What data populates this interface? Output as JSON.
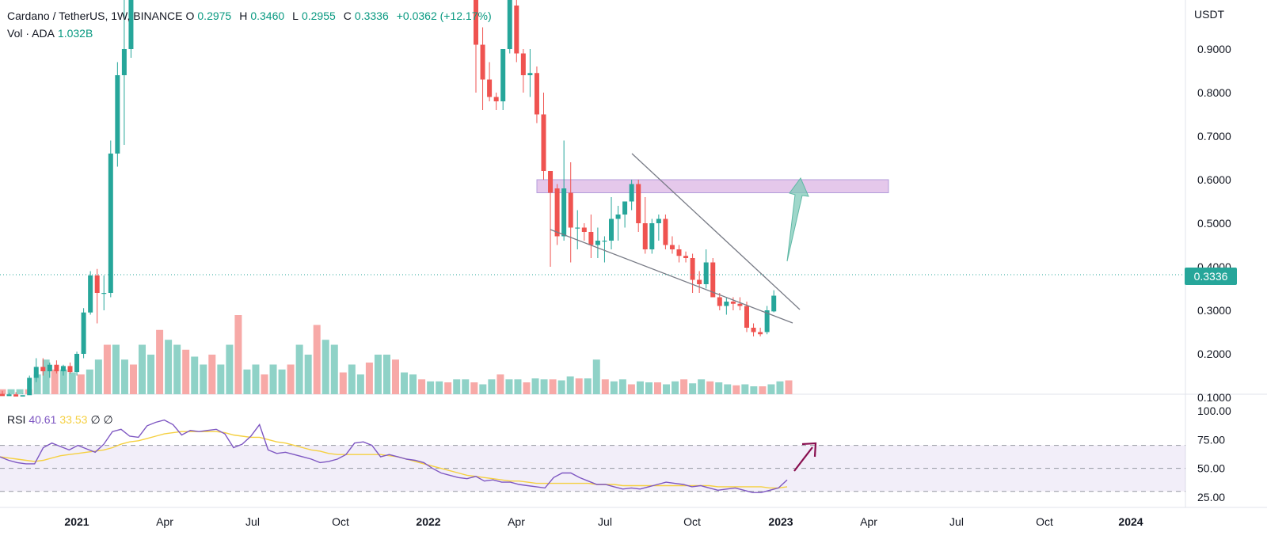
{
  "symbol": {
    "name": "Cardano / TetherUS, 1W, BINANCE",
    "o_label": "O",
    "o": "0.2975",
    "h_label": "H",
    "h": "0.3460",
    "l_label": "L",
    "l": "0.2955",
    "c_label": "C",
    "c": "0.3336",
    "change": "+0.0362 (+12.17%)"
  },
  "volume": {
    "label": "Vol · ADA",
    "value": "1.032B"
  },
  "rsi": {
    "label": "RSI",
    "value": "40.61",
    "ma": "33.53",
    "extra": "∅ ∅"
  },
  "price_axis": {
    "unit": "USDT",
    "last_price": "0.3336"
  },
  "colors": {
    "up": "#26a69a",
    "down": "#ef5350",
    "vol_up": "#8fd2c7",
    "vol_down": "#f7a9a7",
    "zone": "#e1bee7",
    "rsi": "#7e57c2",
    "rsi_ma": "#f5d041",
    "arrow_up": "#7fc9b8",
    "arrow_rsi": "#880e4f"
  },
  "chart_data": {
    "type": "candlestick",
    "title": "Cardano / TetherUS, 1W, BINANCE",
    "price_axis": {
      "ticks": [
        "0.9000",
        "0.8000",
        "0.7000",
        "0.6000",
        "0.5000",
        "0.4000",
        "0.3000",
        "0.2000",
        "0.1000"
      ],
      "range": [
        0.06,
        0.94
      ]
    },
    "rsi_axis": {
      "ticks": [
        "100.00",
        "75.00",
        "50.00",
        "25.00"
      ],
      "range": [
        20,
        100
      ],
      "bands": [
        30,
        50,
        70
      ]
    },
    "time_axis": [
      "2021",
      "Apr",
      "Jul",
      "Oct",
      "2022",
      "Apr",
      "Jul",
      "Oct",
      "2023",
      "Apr",
      "Jul",
      "Oct",
      "2024"
    ],
    "candles": [
      [
        0.108,
        0.115,
        0.098,
        0.103
      ],
      [
        0.103,
        0.11,
        0.098,
        0.107
      ],
      [
        0.107,
        0.112,
        0.1,
        0.102
      ],
      [
        0.102,
        0.108,
        0.097,
        0.105
      ],
      [
        0.105,
        0.15,
        0.1,
        0.145
      ],
      [
        0.145,
        0.19,
        0.135,
        0.17
      ],
      [
        0.17,
        0.19,
        0.15,
        0.16
      ],
      [
        0.16,
        0.18,
        0.145,
        0.175
      ],
      [
        0.175,
        0.185,
        0.155,
        0.16
      ],
      [
        0.16,
        0.175,
        0.15,
        0.172
      ],
      [
        0.172,
        0.18,
        0.155,
        0.158
      ],
      [
        0.158,
        0.205,
        0.15,
        0.2
      ],
      [
        0.2,
        0.305,
        0.19,
        0.295
      ],
      [
        0.295,
        0.39,
        0.29,
        0.38
      ],
      [
        0.38,
        0.395,
        0.27,
        0.34
      ],
      [
        0.34,
        0.38,
        0.3,
        0.34
      ],
      [
        0.34,
        0.69,
        0.33,
        0.66
      ],
      [
        0.66,
        0.87,
        0.63,
        0.84
      ],
      [
        0.84,
        1.2,
        0.68,
        0.9
      ],
      [
        0.9,
        1.2,
        0.88,
        1.15
      ]
    ],
    "candles_2": [
      [
        1.05,
        1.1,
        0.8,
        0.91
      ],
      [
        0.91,
        0.95,
        0.76,
        0.83
      ],
      [
        0.83,
        0.87,
        0.78,
        0.79
      ],
      [
        0.79,
        0.8,
        0.76,
        0.78
      ],
      [
        0.78,
        0.9,
        0.76,
        0.9
      ],
      [
        0.9,
        1.15,
        0.89,
        1.05
      ],
      [
        1.0,
        1.08,
        0.87,
        0.89
      ],
      [
        0.89,
        0.9,
        0.8,
        0.84
      ],
      [
        0.84,
        0.9,
        0.79,
        0.845
      ],
      [
        0.845,
        0.86,
        0.73,
        0.75
      ],
      [
        0.75,
        0.8,
        0.6,
        0.62
      ],
      [
        0.62,
        0.62,
        0.4,
        0.57
      ],
      [
        0.58,
        0.59,
        0.45,
        0.47
      ],
      [
        0.47,
        0.69,
        0.46,
        0.58
      ],
      [
        0.57,
        0.64,
        0.41,
        0.49
      ],
      [
        0.49,
        0.53,
        0.44,
        0.49
      ],
      [
        0.49,
        0.5,
        0.46,
        0.48
      ],
      [
        0.48,
        0.52,
        0.42,
        0.45
      ],
      [
        0.45,
        0.49,
        0.42,
        0.46
      ],
      [
        0.46,
        0.47,
        0.41,
        0.46
      ],
      [
        0.46,
        0.56,
        0.44,
        0.51
      ],
      [
        0.51,
        0.54,
        0.46,
        0.52
      ],
      [
        0.52,
        0.54,
        0.49,
        0.55
      ],
      [
        0.55,
        0.6,
        0.53,
        0.59
      ],
      [
        0.59,
        0.6,
        0.48,
        0.5
      ],
      [
        0.5,
        0.56,
        0.43,
        0.44
      ],
      [
        0.44,
        0.51,
        0.43,
        0.5
      ],
      [
        0.5,
        0.52,
        0.46,
        0.51
      ],
      [
        0.51,
        0.52,
        0.44,
        0.45
      ],
      [
        0.45,
        0.47,
        0.43,
        0.44
      ],
      [
        0.44,
        0.45,
        0.41,
        0.425
      ],
      [
        0.425,
        0.435,
        0.41,
        0.42
      ],
      [
        0.42,
        0.43,
        0.34,
        0.37
      ],
      [
        0.37,
        0.39,
        0.34,
        0.36
      ],
      [
        0.36,
        0.44,
        0.35,
        0.41
      ],
      [
        0.41,
        0.42,
        0.33,
        0.33
      ],
      [
        0.33,
        0.34,
        0.3,
        0.31
      ],
      [
        0.31,
        0.33,
        0.29,
        0.32
      ],
      [
        0.32,
        0.33,
        0.3,
        0.315
      ],
      [
        0.315,
        0.33,
        0.3,
        0.31
      ],
      [
        0.31,
        0.32,
        0.25,
        0.26
      ],
      [
        0.26,
        0.27,
        0.24,
        0.25
      ],
      [
        0.25,
        0.26,
        0.24,
        0.245
      ],
      [
        0.25,
        0.31,
        0.245,
        0.3
      ],
      [
        0.2975,
        0.346,
        0.2955,
        0.3336
      ]
    ],
    "volume_scale": {
      "max": 1.0
    },
    "volume": [
      0.05,
      0.05,
      0.05,
      0.05,
      0.2,
      0.35,
      0.25,
      0.25,
      0.22,
      0.2,
      0.25,
      0.35,
      0.5,
      0.5,
      0.35,
      0.3,
      0.5,
      0.4,
      0.65,
      0.55,
      0.5,
      0.45,
      0.38,
      0.3,
      0.4,
      0.3,
      0.5,
      0.8,
      0.25,
      0.3,
      0.2,
      0.3,
      0.25,
      0.3,
      0.5,
      0.4,
      0.7,
      0.55,
      0.5,
      0.22,
      0.3,
      0.2,
      0.32,
      0.4,
      0.4,
      0.35
    ],
    "volume_2": [
      0.22,
      0.2,
      0.15,
      0.13,
      0.13,
      0.12,
      0.15,
      0.15,
      0.12,
      0.1,
      0.15,
      0.2,
      0.15,
      0.15,
      0.12,
      0.16,
      0.15,
      0.15,
      0.14,
      0.18,
      0.16,
      0.16,
      0.35,
      0.15,
      0.13,
      0.15,
      0.1,
      0.13,
      0.12,
      0.12,
      0.1,
      0.13,
      0.15,
      0.11,
      0.15,
      0.13,
      0.12,
      0.1,
      0.09,
      0.1,
      0.08,
      0.08,
      0.1,
      0.13,
      0.14
    ],
    "zone": {
      "low": 0.57,
      "high": 0.6
    },
    "channel_upper": [
      {
        "t": "2022-07-25",
        "y": 0.61
      },
      {
        "t": "2023-01-15",
        "y": 0.255
      }
    ],
    "channel_lower": [
      {
        "t": "2022-05-09",
        "y": 0.41
      },
      {
        "t": "2023-01-15",
        "y": 0.225
      }
    ],
    "rsi_values": [
      60,
      57,
      55,
      54,
      54,
      68,
      72,
      69,
      66,
      70,
      67,
      64,
      71,
      82,
      84,
      78,
      77,
      87,
      90,
      92,
      88,
      79,
      83,
      82,
      83,
      84,
      80,
      68,
      71,
      78,
      88,
      66,
      63,
      64,
      62,
      60,
      58,
      55,
      56,
      58,
      62,
      72,
      73,
      70,
      60,
      62,
      60,
      58,
      57,
      55,
      50,
      46,
      44,
      42,
      41,
      43,
      39,
      40,
      38,
      38,
      36,
      35,
      34,
      33,
      42,
      46,
      46,
      42,
      39,
      36,
      36,
      34,
      32,
      33,
      32,
      34,
      36,
      38,
      37,
      36,
      34,
      35,
      33,
      31,
      32,
      33,
      31,
      29,
      29,
      31,
      33,
      40
    ],
    "rsi_ma": [
      60,
      59,
      58,
      57,
      56,
      57,
      59,
      61,
      62,
      63,
      64,
      65,
      66,
      68,
      71,
      73,
      74,
      76,
      78,
      80,
      81,
      82,
      82,
      82,
      82,
      82,
      81,
      79,
      78,
      77,
      77,
      75,
      73,
      72,
      70,
      68,
      66,
      65,
      63,
      62,
      62,
      62,
      62,
      62,
      62,
      61,
      60,
      58,
      56,
      54,
      52,
      50,
      48,
      46,
      44,
      43,
      42,
      41,
      40,
      39,
      39,
      38,
      37,
      37,
      37,
      37,
      37,
      37,
      37,
      36,
      36,
      36,
      35,
      35,
      35,
      35,
      35,
      35,
      35,
      35,
      35,
      35,
      35,
      34,
      34,
      34,
      34,
      34,
      34,
      33,
      33,
      34
    ]
  }
}
